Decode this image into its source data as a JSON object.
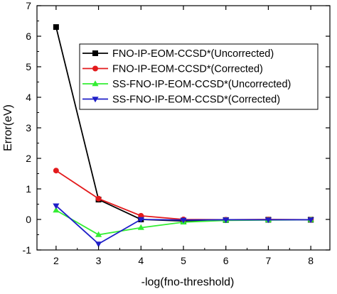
{
  "chart_data": {
    "type": "line",
    "title": "",
    "xlabel": "-log(fno-threshold)",
    "ylabel": "Error(eV)",
    "x": [
      2,
      3,
      4,
      5,
      6,
      7,
      8
    ],
    "xlim": [
      1.55,
      8.45
    ],
    "ylim": [
      -1,
      7
    ],
    "xticks": [
      2,
      3,
      4,
      5,
      6,
      7,
      8
    ],
    "yticks": [
      -1,
      0,
      1,
      2,
      3,
      4,
      5,
      6,
      7
    ],
    "grid": false,
    "legend_position": "top-right",
    "series": [
      {
        "name": "FNO-IP-EOM-CCSD*(Uncorrected)",
        "color": "#000000",
        "marker": "square",
        "values": [
          6.3,
          0.65,
          0.0,
          -0.05,
          -0.02,
          -0.01,
          -0.01
        ]
      },
      {
        "name": "FNO-IP-EOM-CCSD*(Corrected)",
        "color": "#e31a1c",
        "marker": "circle",
        "values": [
          1.6,
          0.68,
          0.12,
          0.0,
          -0.01,
          0.0,
          -0.01
        ]
      },
      {
        "name": "SS-FNO-IP-EOM-CCSD*(Uncorrected)",
        "color": "#33ee33",
        "marker": "triangle-up",
        "values": [
          0.3,
          -0.5,
          -0.27,
          -0.09,
          -0.03,
          -0.02,
          -0.01
        ]
      },
      {
        "name": "SS-FNO-IP-EOM-CCSD*(Corrected)",
        "color": "#1f1fc8",
        "marker": "triangle-down",
        "values": [
          0.45,
          -0.8,
          0.0,
          -0.02,
          -0.01,
          -0.01,
          -0.01
        ]
      }
    ]
  }
}
